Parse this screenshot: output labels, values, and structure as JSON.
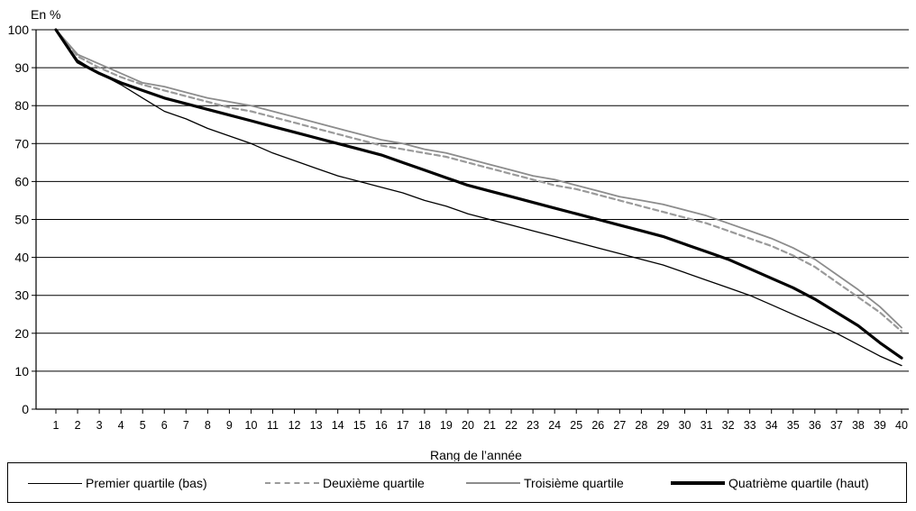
{
  "chart_data": {
    "type": "line",
    "title": "",
    "ylabel": "En %",
    "xlabel": "Rang de l’année",
    "ylim": [
      0,
      100
    ],
    "yticks": [
      0,
      10,
      20,
      30,
      40,
      50,
      60,
      70,
      80,
      90,
      100
    ],
    "x": [
      1,
      2,
      3,
      4,
      5,
      6,
      7,
      8,
      9,
      10,
      11,
      12,
      13,
      14,
      15,
      16,
      17,
      18,
      19,
      20,
      21,
      22,
      23,
      24,
      25,
      26,
      27,
      28,
      29,
      30,
      31,
      32,
      33,
      34,
      35,
      36,
      37,
      38,
      39,
      40
    ],
    "grid": "horizontal",
    "legend_position": "bottom",
    "series": [
      {
        "name": "Premier quartile (bas)",
        "color": "#000000",
        "style": "solid-thin",
        "values": [
          100,
          92,
          88.5,
          85.5,
          82,
          78.5,
          76.5,
          74,
          72,
          70,
          67.5,
          65.5,
          63.5,
          61.5,
          60,
          58.5,
          57,
          55,
          53.5,
          51.5,
          50,
          48.5,
          47,
          45.5,
          44,
          42.5,
          41,
          39.5,
          38,
          36,
          34,
          32,
          30,
          27.5,
          25,
          22.5,
          20,
          17,
          14,
          11.5
        ]
      },
      {
        "name": "Deuxième quartile",
        "color": "#9a9a9a",
        "style": "dashed",
        "values": [
          100,
          93,
          90,
          87.5,
          85.5,
          84,
          82.5,
          81,
          79.5,
          78.5,
          77,
          75.5,
          74,
          72.5,
          71,
          69.5,
          68.5,
          67.5,
          66.5,
          65,
          63.5,
          62,
          60.5,
          59,
          58,
          56.5,
          55,
          53.5,
          52,
          50.5,
          49,
          47,
          45,
          43,
          40.5,
          37.5,
          33.5,
          29.5,
          25.5,
          20.5
        ]
      },
      {
        "name": "Troisième quartile",
        "color": "#8c8c8c",
        "style": "solid",
        "values": [
          100,
          93.5,
          91,
          88.5,
          86,
          85,
          83.5,
          82,
          81,
          80,
          78.5,
          77,
          75.5,
          74,
          72.5,
          71,
          70,
          68.5,
          67.5,
          66,
          64.5,
          63,
          61.5,
          60.5,
          59,
          57.5,
          56,
          55,
          54,
          52.5,
          51,
          49,
          47,
          45,
          42.5,
          39.5,
          35.5,
          31.5,
          27,
          21.5
        ]
      },
      {
        "name": "Quatrième quartile (haut)",
        "color": "#000000",
        "style": "solid-thick",
        "values": [
          100,
          91.5,
          88.5,
          86,
          84,
          82,
          80.5,
          79,
          77.5,
          76,
          74.5,
          73,
          71.5,
          70,
          68.5,
          67,
          65,
          63,
          61,
          59,
          57.5,
          56,
          54.5,
          53,
          51.5,
          50,
          48.5,
          47,
          45.5,
          43.5,
          41.5,
          39.5,
          37,
          34.5,
          32,
          29,
          25.5,
          22,
          17.5,
          13.5
        ]
      }
    ]
  }
}
